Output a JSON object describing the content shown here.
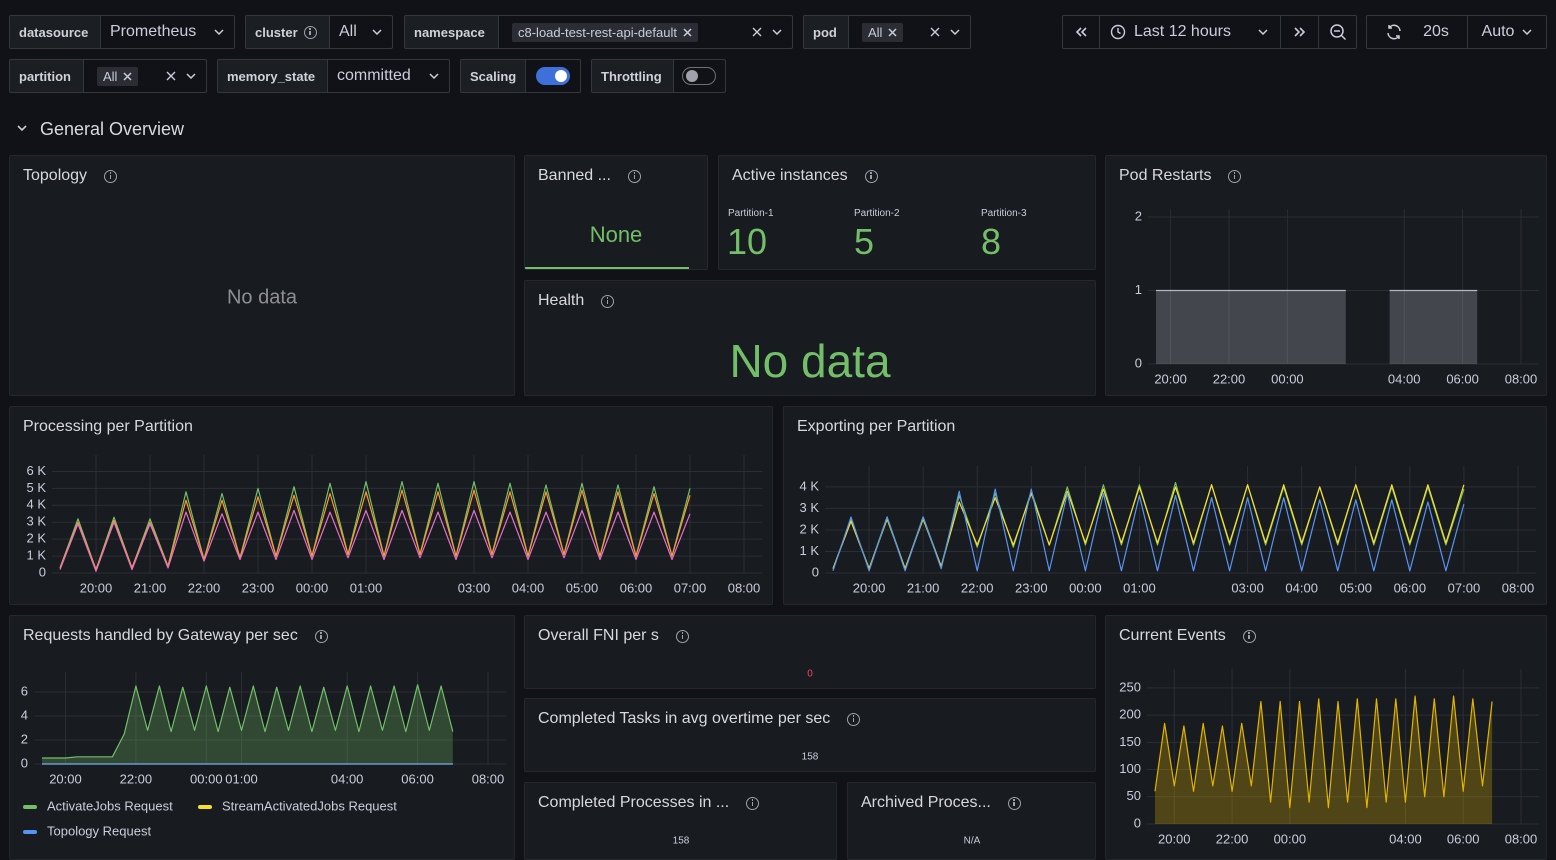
{
  "variables": [
    {
      "label": "datasource",
      "value": "Prometheus"
    },
    {
      "label": "cluster",
      "value": "All"
    },
    {
      "label": "namespace",
      "value": "c8-load-test-rest-api-default"
    },
    {
      "label": "pod",
      "value": "All"
    },
    {
      "label": "partition",
      "value": "All"
    },
    {
      "label": "memory_state",
      "value": "committed"
    }
  ],
  "toggles": [
    {
      "label": "Scaling",
      "on": true
    },
    {
      "label": "Throttling",
      "on": false
    }
  ],
  "time_picker": {
    "range": "Last 12 hours",
    "refresh": "20s",
    "mode": "Auto"
  },
  "row_title": "General Overview",
  "topology": {
    "title": "Topology",
    "message": "No data"
  },
  "banned": {
    "title": "Banned ...",
    "value": "None"
  },
  "active_instances": {
    "title": "Active instances",
    "items": [
      {
        "label": "Partition-1",
        "value": 10
      },
      {
        "label": "Partition-2",
        "value": 5
      },
      {
        "label": "Partition-3",
        "value": 8
      }
    ]
  },
  "health": {
    "title": "Health",
    "message": "No data"
  },
  "fni": {
    "title": "Overall FNI per s",
    "value": 0
  },
  "completed_tasks": {
    "title": "Completed Tasks in avg overtime per sec",
    "value": 158
  },
  "completed_processes": {
    "title": "Completed Processes in ...",
    "value": 158
  },
  "archived": {
    "title": "Archived Proces...",
    "value": "N/A"
  },
  "chart_data": [
    {
      "type": "line",
      "title": "Pod Restarts",
      "area": true,
      "grid": true,
      "ylim": [
        0,
        2
      ],
      "yticks": [
        0,
        1,
        2
      ],
      "categories": [
        null,
        "20:00",
        null,
        null,
        null,
        "22:00",
        null,
        null,
        null,
        "00:00",
        null,
        null,
        null,
        null,
        null,
        null,
        null,
        "04:00",
        null,
        null,
        null,
        "06:00",
        null,
        null,
        null,
        "08:00"
      ],
      "series": [
        {
          "color": "#b4b7c4",
          "values": [
            1,
            1,
            1,
            1,
            1,
            1,
            1,
            1,
            1,
            1,
            1,
            1,
            1,
            1,
            null,
            null,
            1,
            1,
            1,
            1,
            1,
            1,
            1,
            null,
            null,
            null
          ]
        }
      ]
    },
    {
      "type": "line",
      "title": "Processing per Partition",
      "grid": true,
      "ylim": [
        0,
        6500
      ],
      "yticks": [
        0,
        {
          "value": 1000,
          "label": "1 K"
        },
        {
          "value": 2000,
          "label": "2 K"
        },
        {
          "value": 3000,
          "label": "3 K"
        },
        {
          "value": 4000,
          "label": "4 K"
        },
        {
          "value": 5000,
          "label": "5 K"
        },
        {
          "value": 6000,
          "label": "6 K"
        }
      ],
      "categories": [
        null,
        null,
        "20:00",
        null,
        null,
        "21:00",
        null,
        null,
        "22:00",
        null,
        null,
        "23:00",
        null,
        null,
        "00:00",
        null,
        null,
        "01:00",
        null,
        null,
        null,
        null,
        null,
        "03:00",
        null,
        null,
        "04:00",
        null,
        null,
        "05:00",
        null,
        null,
        "06:00",
        null,
        null,
        "07:00",
        null,
        null,
        "08:00"
      ],
      "series": [
        {
          "color": "#73bf69",
          "values": [
            300,
            3200,
            200,
            3300,
            300,
            3200,
            400,
            4800,
            800,
            4700,
            900,
            5000,
            1000,
            5100,
            1000,
            5300,
            1100,
            5400,
            1000,
            5400,
            1100,
            5300,
            1000,
            5400,
            1100,
            5300,
            1000,
            5200,
            1100,
            5300,
            1000,
            5200,
            1000,
            5100,
            1000,
            5000,
            null,
            null,
            null
          ]
        },
        {
          "color": "#ff9830",
          "values": [
            300,
            3000,
            200,
            3100,
            300,
            3000,
            400,
            4300,
            800,
            4300,
            900,
            4500,
            1000,
            4600,
            1000,
            4700,
            1100,
            4800,
            1000,
            4900,
            1100,
            4800,
            1000,
            4900,
            1100,
            4800,
            1000,
            4800,
            1100,
            4900,
            1000,
            4800,
            1000,
            4700,
            1000,
            4600,
            null,
            null,
            null
          ]
        },
        {
          "color": "#e36fc9",
          "values": [
            200,
            2900,
            100,
            3000,
            200,
            2900,
            300,
            3600,
            700,
            3500,
            800,
            3600,
            800,
            3700,
            800,
            3600,
            900,
            3700,
            800,
            3700,
            900,
            3600,
            800,
            3700,
            900,
            3600,
            800,
            3600,
            900,
            3700,
            800,
            3600,
            800,
            3600,
            800,
            3500,
            null,
            null,
            null
          ]
        }
      ]
    },
    {
      "type": "line",
      "title": "Exporting per Partition",
      "grid": true,
      "ylim": [
        0,
        4600
      ],
      "yticks": [
        0,
        {
          "value": 1000,
          "label": "1 K"
        },
        {
          "value": 2000,
          "label": "2 K"
        },
        {
          "value": 3000,
          "label": "3 K"
        },
        {
          "value": 4000,
          "label": "4 K"
        }
      ],
      "categories": [
        null,
        null,
        "20:00",
        null,
        null,
        "21:00",
        null,
        null,
        "22:00",
        null,
        null,
        "23:00",
        null,
        null,
        "00:00",
        null,
        null,
        "01:00",
        null,
        null,
        null,
        null,
        null,
        "03:00",
        null,
        null,
        "04:00",
        null,
        null,
        "05:00",
        null,
        null,
        "06:00",
        null,
        null,
        "07:00",
        null,
        null,
        "08:00"
      ],
      "series": [
        {
          "color": "#73bf69",
          "values": [
            200,
            2500,
            200,
            2600,
            200,
            2600,
            300,
            3600,
            1200,
            3700,
            1200,
            3800,
            1300,
            4000,
            1300,
            4100,
            1300,
            4100,
            1300,
            4200,
            1300,
            4100,
            1300,
            4100,
            1300,
            4000,
            1300,
            4000,
            1300,
            4100,
            1300,
            4000,
            1300,
            4000,
            1300,
            3900,
            null,
            null,
            null
          ]
        },
        {
          "color": "#fade2a",
          "values": [
            200,
            2400,
            200,
            2500,
            200,
            2500,
            300,
            3300,
            1300,
            3500,
            1300,
            3700,
            1300,
            3800,
            1400,
            3900,
            1400,
            4000,
            1400,
            4000,
            1400,
            4100,
            1400,
            4100,
            1400,
            4100,
            1400,
            4000,
            1400,
            4100,
            1400,
            4100,
            1400,
            4100,
            1400,
            4100,
            null,
            null,
            null
          ]
        },
        {
          "color": "#5794f2",
          "values": [
            100,
            2600,
            100,
            2600,
            100,
            2600,
            200,
            3800,
            100,
            3900,
            100,
            3900,
            100,
            3700,
            100,
            3700,
            100,
            3600,
            100,
            3600,
            100,
            3500,
            100,
            3500,
            100,
            3500,
            100,
            3400,
            100,
            3400,
            100,
            3400,
            100,
            3300,
            100,
            3200,
            null,
            null,
            null
          ]
        }
      ]
    },
    {
      "type": "line",
      "title": "Requests handled by Gateway per sec",
      "area": true,
      "grid": true,
      "legend": true,
      "ylim": [
        0,
        7
      ],
      "yticks": [
        0,
        2,
        4,
        6
      ],
      "categories": [
        null,
        null,
        "20:00",
        null,
        null,
        null,
        null,
        null,
        "22:00",
        null,
        null,
        null,
        null,
        null,
        "00:00",
        null,
        null,
        "01:00",
        null,
        null,
        null,
        null,
        null,
        null,
        null,
        null,
        "04:00",
        null,
        null,
        null,
        null,
        null,
        "06:00",
        null,
        null,
        null,
        null,
        null,
        "08:00"
      ],
      "series": [
        {
          "name": "ActivateJobs Request",
          "color": "#73bf69",
          "values": [
            0.5,
            0.5,
            0.5,
            0.6,
            0.6,
            0.6,
            0.6,
            2.5,
            6.5,
            2.8,
            6.5,
            2.7,
            6.4,
            2.8,
            6.5,
            2.7,
            6.4,
            2.8,
            6.5,
            2.7,
            6.4,
            2.8,
            6.5,
            2.7,
            6.4,
            2.8,
            6.5,
            2.7,
            6.5,
            2.8,
            6.5,
            2.7,
            6.6,
            2.8,
            6.5,
            2.7,
            null,
            null,
            null
          ]
        },
        {
          "name": "StreamActivatedJobs Request",
          "color": "#fade2a",
          "values": [
            0,
            0,
            0,
            0,
            0,
            0,
            0,
            0,
            0,
            0,
            0,
            0,
            0,
            0,
            0,
            0,
            0,
            0,
            0,
            0,
            0,
            0,
            0,
            0,
            0,
            0,
            0,
            0,
            0,
            0,
            0,
            0,
            0,
            0,
            0,
            0,
            null,
            null,
            null
          ]
        },
        {
          "name": "Topology Request",
          "color": "#5794f2",
          "values": [
            0,
            0,
            0,
            0,
            0,
            0,
            0,
            0,
            0,
            0,
            0,
            0,
            0,
            0,
            0,
            0,
            0,
            0,
            0,
            0,
            0,
            0,
            0,
            0,
            0,
            0,
            0,
            0,
            0,
            0,
            0,
            0,
            0,
            0,
            0,
            0,
            null,
            null,
            null
          ]
        }
      ]
    },
    {
      "type": "line",
      "title": "Current Events",
      "area": true,
      "grid": true,
      "ylim": [
        0,
        270
      ],
      "yticks": [
        0,
        50,
        100,
        150,
        200,
        250
      ],
      "categories": [
        null,
        null,
        "20:00",
        null,
        null,
        null,
        null,
        null,
        "22:00",
        null,
        null,
        null,
        null,
        null,
        "00:00",
        null,
        null,
        null,
        null,
        null,
        null,
        null,
        null,
        null,
        null,
        null,
        "04:00",
        null,
        null,
        null,
        null,
        null,
        "06:00",
        null,
        null,
        null,
        null,
        null,
        "08:00"
      ],
      "series": [
        {
          "color": "#e0b400",
          "values": [
            60,
            185,
            70,
            180,
            60,
            185,
            70,
            180,
            60,
            185,
            70,
            225,
            40,
            225,
            30,
            225,
            40,
            230,
            30,
            225,
            40,
            230,
            30,
            230,
            40,
            230,
            40,
            235,
            50,
            230,
            50,
            235,
            60,
            230,
            70,
            225,
            null,
            null,
            null
          ]
        }
      ]
    }
  ]
}
